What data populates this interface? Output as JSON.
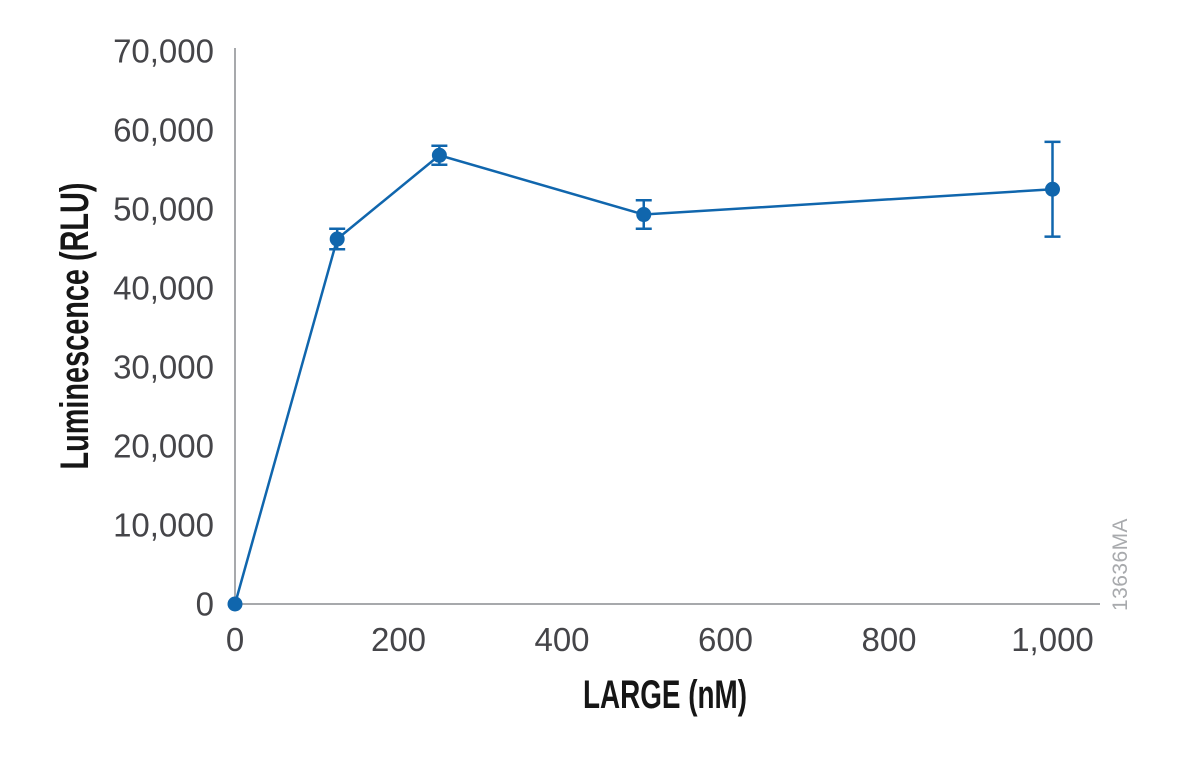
{
  "figure": {
    "background": "#ffffff",
    "watermark": "13636MA"
  },
  "chart_data": {
    "type": "line",
    "title": "",
    "xlabel": "LARGE (nM)",
    "ylabel": "Luminescence (RLU)",
    "xlim": [
      0,
      1000
    ],
    "ylim": [
      0,
      70000
    ],
    "grid": false,
    "legend": "none",
    "x_ticks": [
      {
        "value": 0,
        "label": "0"
      },
      {
        "value": 200,
        "label": "200"
      },
      {
        "value": 400,
        "label": "400"
      },
      {
        "value": 600,
        "label": "600"
      },
      {
        "value": 800,
        "label": "800"
      },
      {
        "value": 1000,
        "label": "1,000"
      }
    ],
    "y_ticks": [
      {
        "value": 0,
        "label": "0"
      },
      {
        "value": 10000,
        "label": "10,000"
      },
      {
        "value": 20000,
        "label": "20,000"
      },
      {
        "value": 30000,
        "label": "30,000"
      },
      {
        "value": 40000,
        "label": "40,000"
      },
      {
        "value": 50000,
        "label": "50,000"
      },
      {
        "value": 60000,
        "label": "60,000"
      },
      {
        "value": 70000,
        "label": "70,000"
      }
    ],
    "series": [
      {
        "color": "#1066ad",
        "marker": "circle",
        "points": [
          {
            "x": 0,
            "y": 0,
            "err": 0
          },
          {
            "x": 125,
            "y": 46200,
            "err": 1300
          },
          {
            "x": 250,
            "y": 56800,
            "err": 1200
          },
          {
            "x": 500,
            "y": 49300,
            "err": 1800
          },
          {
            "x": 1000,
            "y": 52500,
            "err": 6000
          }
        ]
      }
    ],
    "colors": {
      "axis": "#a7a9ac",
      "tick_text": "#454549",
      "title_text": "#161616",
      "watermark": "#a8aaad"
    }
  }
}
